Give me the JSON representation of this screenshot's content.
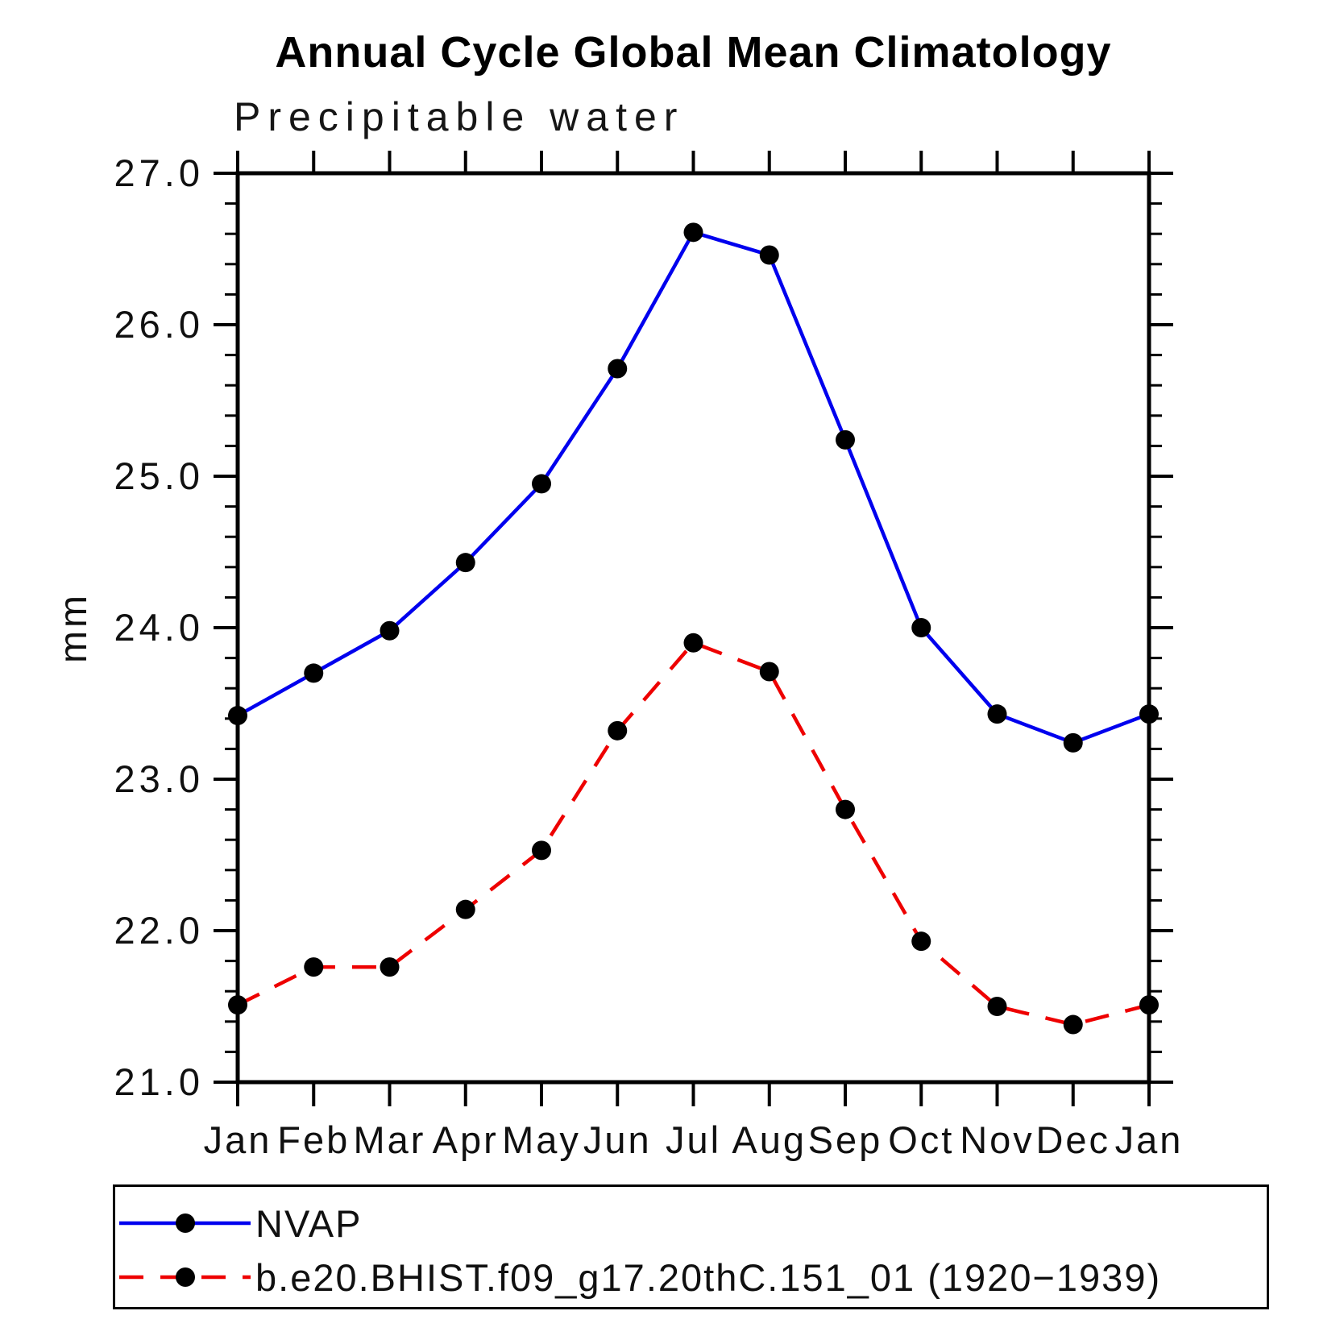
{
  "title": "Annual Cycle Global Mean Climatology",
  "subtitle": "Precipitable water",
  "chart_data": {
    "type": "line",
    "x_tick_labels": [
      "Jan",
      "Feb",
      "Mar",
      "Apr",
      "May",
      "Jun",
      "Jul",
      "Aug",
      "Sep",
      "Oct",
      "Nov",
      "Dec",
      "Jan"
    ],
    "xlabel": "",
    "ylabel": "mm",
    "ylim": [
      21.0,
      27.0
    ],
    "y_tick_labels": [
      "27.0",
      "26.0",
      "25.0",
      "24.0",
      "23.0",
      "22.0",
      "21.0"
    ],
    "y_major_values": [
      27.0,
      26.0,
      25.0,
      24.0,
      23.0,
      22.0,
      21.0
    ],
    "y_minor_step": 0.2,
    "grid": false,
    "legend_position": "bottom-left-box",
    "series": [
      {
        "name": "NVAP",
        "color": "#0000ee",
        "style": "solid",
        "marker": "circle",
        "marker_color": "#000000",
        "values": [
          23.42,
          23.7,
          23.98,
          24.43,
          24.95,
          25.71,
          26.61,
          26.46,
          25.24,
          24.0,
          23.43,
          23.24,
          23.43
        ]
      },
      {
        "name": "b.e20.BHIST.f09_g17.20thC.151_01 (1920−1939)",
        "color": "#ee0000",
        "style": "dashed",
        "marker": "circle",
        "marker_color": "#000000",
        "values": [
          21.51,
          21.76,
          21.76,
          22.14,
          22.53,
          23.32,
          23.9,
          23.71,
          22.8,
          21.93,
          21.5,
          21.38,
          21.51
        ]
      }
    ]
  },
  "colors": {
    "axis": "#000000",
    "background": "#ffffff",
    "text": "#000000"
  }
}
